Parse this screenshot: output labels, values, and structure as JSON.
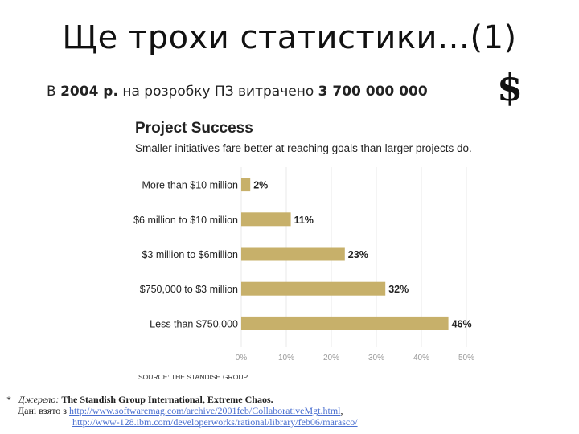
{
  "slide": {
    "title": "Ще трохи статистики…(1)",
    "subtitle": {
      "prefix": "В ",
      "year": "2004 р.",
      "middle": " на розробку ПЗ витрачено ",
      "amount": "3 700 000 000",
      "currency": "$"
    }
  },
  "chart_data": {
    "type": "bar",
    "orientation": "horizontal",
    "title": "Project Success",
    "subtitle": "Smaller initiatives fare better at reaching goals than larger projects do.",
    "categories": [
      "More than $10 million",
      "$6 million to $10 million",
      "$3 million to $6million",
      "$750,000 to $3 million",
      "Less than $750,000"
    ],
    "values": [
      2,
      11,
      23,
      32,
      46
    ],
    "value_labels": [
      "2%",
      "11%",
      "23%",
      "32%",
      "46%"
    ],
    "x_ticks": [
      "0%",
      "10%",
      "20%",
      "30%",
      "40%",
      "50%"
    ],
    "xlim": [
      0,
      50
    ],
    "grid": "vertical",
    "source": "SOURCE: THE STANDISH GROUP",
    "colors": {
      "bar": "#c7b06a",
      "axis_text": "#9a9a9a",
      "grid": "#e8e8e8"
    }
  },
  "footnote": {
    "marker": "*",
    "source_label": "Джерело:",
    "source_name": "The Standish Group International, Extreme Chaos.",
    "data_prefix": "Дані взято з ",
    "link1": "http://www.softwaremag.com/archive/2001feb/CollaborativeMgt.html",
    "sep": ",",
    "link2": "http://www-128.ibm.com/developerworks/rational/library/feb06/marasco/"
  }
}
